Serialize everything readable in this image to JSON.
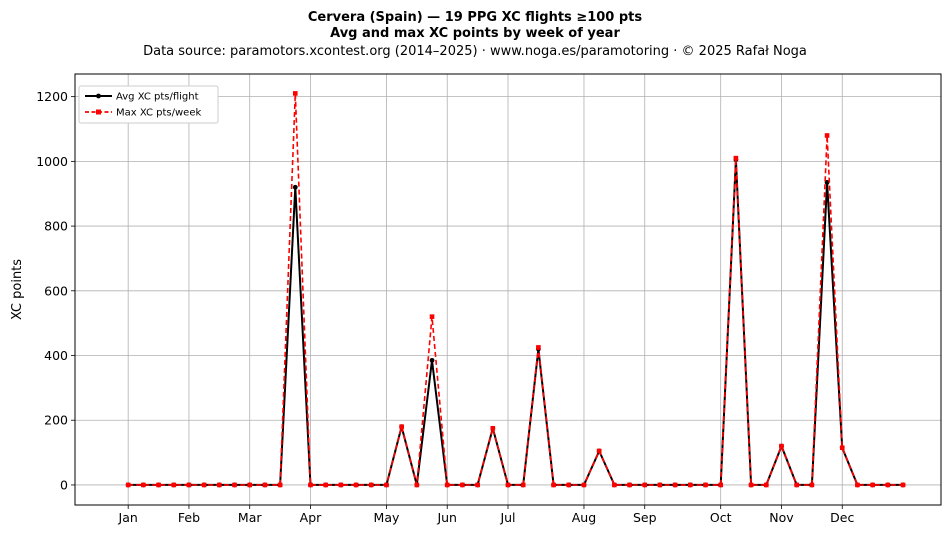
{
  "chart_data": {
    "type": "line",
    "title": "Cervera (Spain)  —  19 PPG XC flights ≥100 pts",
    "subtitle": "Avg and max XC points by week of year",
    "source_note": "Data source: paramotors.xcontest.org (2014–2025)  ·  www.noga.es/paramotoring  ·  © 2025 Rafał Noga",
    "xlabel": "",
    "ylabel": "XC points",
    "xlim": [
      -2.5,
      54.5
    ],
    "ylim": [
      -62,
      1270
    ],
    "x_ticks": [
      {
        "label": "Jan",
        "x": 1
      },
      {
        "label": "Feb",
        "x": 5
      },
      {
        "label": "Mar",
        "x": 9
      },
      {
        "label": "Apr",
        "x": 13
      },
      {
        "label": "May",
        "x": 18
      },
      {
        "label": "Jun",
        "x": 22
      },
      {
        "label": "Jul",
        "x": 26
      },
      {
        "label": "Aug",
        "x": 31
      },
      {
        "label": "Sep",
        "x": 35
      },
      {
        "label": "Oct",
        "x": 40
      },
      {
        "label": "Nov",
        "x": 44
      },
      {
        "label": "Dec",
        "x": 48
      }
    ],
    "y_ticks": [
      0,
      200,
      400,
      600,
      800,
      1000,
      1200
    ],
    "grid": true,
    "legend_position": "top-left",
    "x": [
      1,
      2,
      3,
      4,
      5,
      6,
      7,
      8,
      9,
      10,
      11,
      12,
      13,
      14,
      15,
      16,
      17,
      18,
      19,
      20,
      21,
      22,
      23,
      24,
      25,
      26,
      27,
      28,
      29,
      30,
      31,
      32,
      33,
      34,
      35,
      36,
      37,
      38,
      39,
      40,
      41,
      42,
      43,
      44,
      45,
      46,
      47,
      48,
      49,
      50,
      51,
      52
    ],
    "series": [
      {
        "name": "Avg XC pts/flight",
        "color": "#000000",
        "style": "solid",
        "marker": "circle",
        "values": [
          0,
          0,
          0,
          0,
          0,
          0,
          0,
          0,
          0,
          0,
          0,
          920,
          0,
          0,
          0,
          0,
          0,
          0,
          180,
          0,
          385,
          0,
          0,
          0,
          175,
          0,
          0,
          420,
          0,
          0,
          0,
          105,
          0,
          0,
          0,
          0,
          0,
          0,
          0,
          0,
          1005,
          0,
          0,
          120,
          0,
          0,
          935,
          115,
          0,
          0,
          0,
          0
        ]
      },
      {
        "name": "Max XC pts/week",
        "color": "#ff0000",
        "style": "dashed",
        "marker": "square",
        "values": [
          0,
          0,
          0,
          0,
          0,
          0,
          0,
          0,
          0,
          0,
          0,
          1210,
          0,
          0,
          0,
          0,
          0,
          0,
          180,
          0,
          520,
          0,
          0,
          0,
          175,
          0,
          0,
          425,
          0,
          0,
          0,
          105,
          0,
          0,
          0,
          0,
          0,
          0,
          0,
          0,
          1010,
          0,
          0,
          120,
          0,
          0,
          1080,
          115,
          0,
          0,
          0,
          0
        ]
      }
    ]
  }
}
